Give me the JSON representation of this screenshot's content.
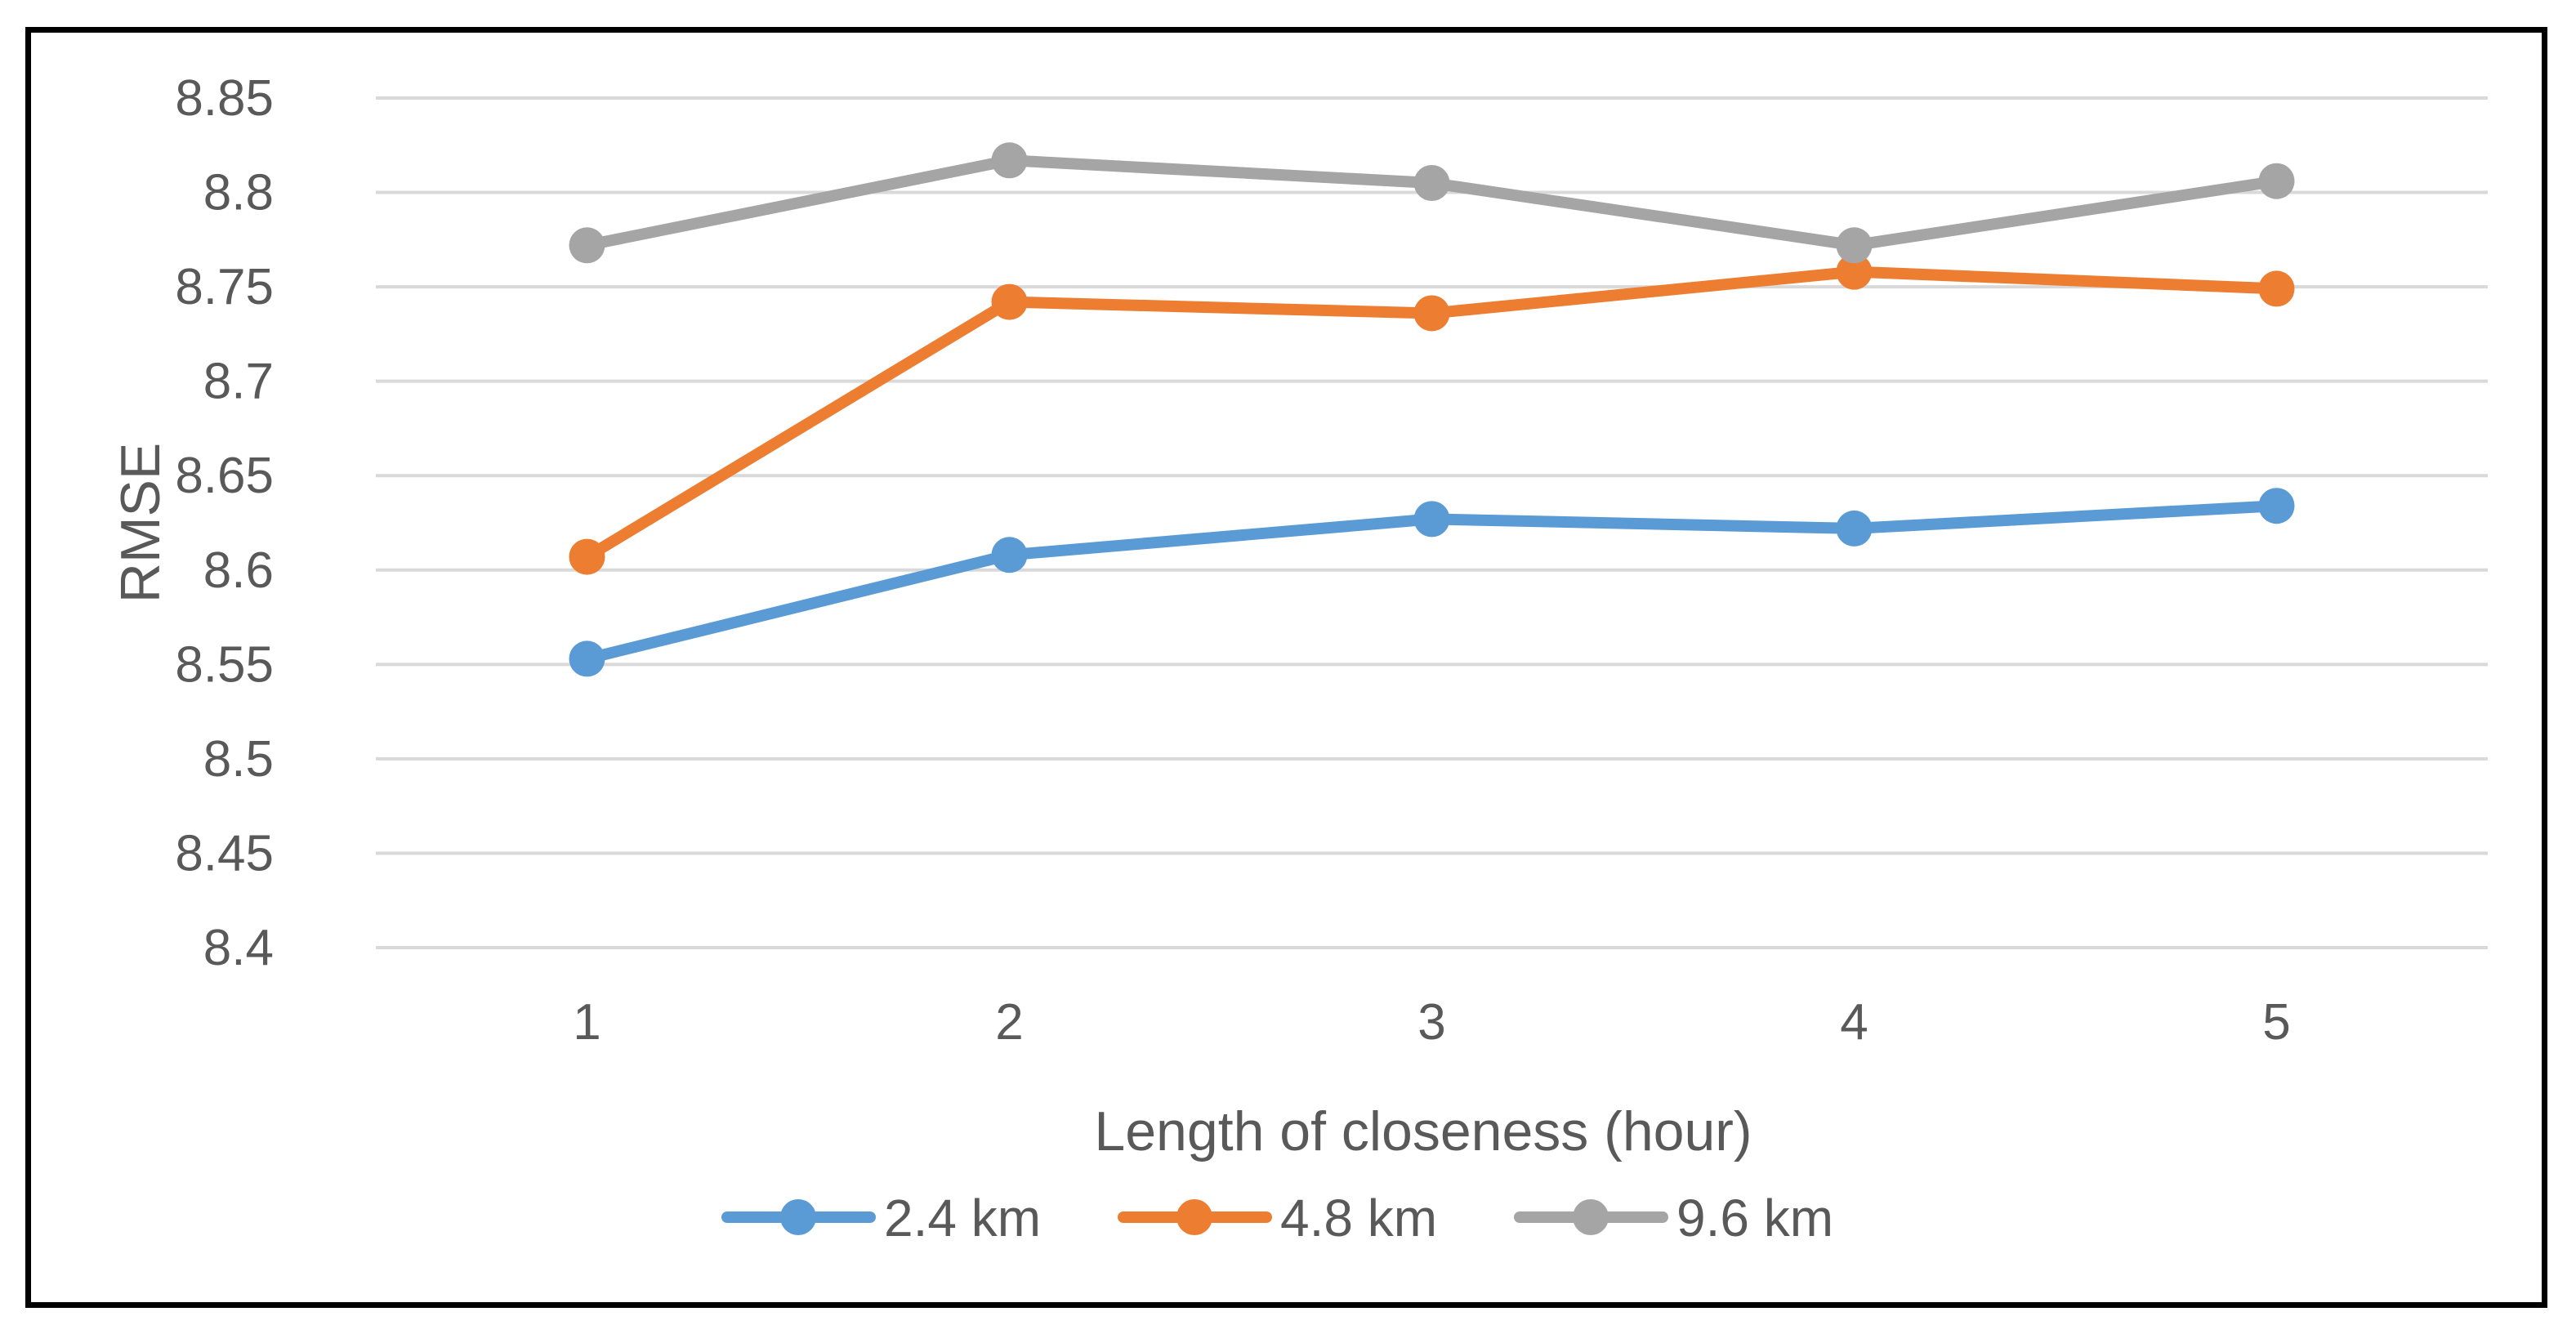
{
  "chart_data": {
    "type": "line",
    "title": "",
    "xlabel": "Length of closeness (hour)",
    "ylabel": "RMSE",
    "categories": [
      "1",
      "2",
      "3",
      "4",
      "5"
    ],
    "ylim": [
      8.4,
      8.85
    ],
    "yticks": [
      "8.4",
      "8.45",
      "8.5",
      "8.55",
      "8.6",
      "8.65",
      "8.7",
      "8.75",
      "8.8",
      "8.85"
    ],
    "grid": true,
    "legend_position": "bottom",
    "series": [
      {
        "name": "2.4 km",
        "color": "#5B9BD5",
        "values": [
          8.553,
          8.608,
          8.627,
          8.622,
          8.634
        ]
      },
      {
        "name": "4.8 km",
        "color": "#ED7D31",
        "values": [
          8.607,
          8.742,
          8.736,
          8.758,
          8.749
        ]
      },
      {
        "name": "9.6 km",
        "color": "#A5A5A5",
        "values": [
          8.772,
          8.817,
          8.805,
          8.772,
          8.806
        ]
      }
    ]
  }
}
